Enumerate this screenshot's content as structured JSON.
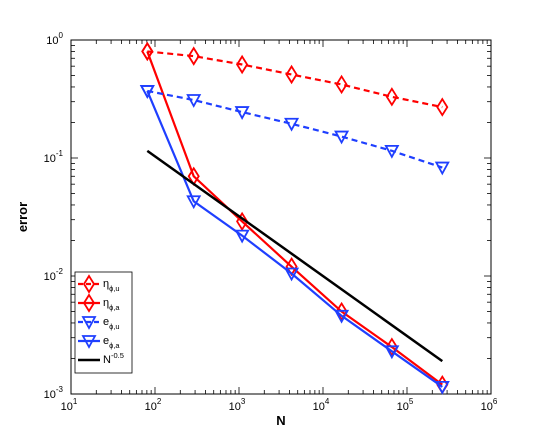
{
  "chart_data": {
    "type": "line",
    "xscale": "log",
    "yscale": "log",
    "xlim": [
      10,
      1000000
    ],
    "ylim": [
      0.001,
      1
    ],
    "xlabel": "N",
    "ylabel": "error",
    "grid": false,
    "legend_placement": "bottom-left",
    "x_ticks": [
      {
        "value": 10,
        "base": "10",
        "exp": "1"
      },
      {
        "value": 100,
        "base": "10",
        "exp": "2"
      },
      {
        "value": 1000,
        "base": "10",
        "exp": "3"
      },
      {
        "value": 10000,
        "base": "10",
        "exp": "4"
      },
      {
        "value": 100000,
        "base": "10",
        "exp": "5"
      },
      {
        "value": 1000000,
        "base": "10",
        "exp": "6"
      }
    ],
    "y_ticks": [
      {
        "value": 0.001,
        "base": "10",
        "exp": "-3"
      },
      {
        "value": 0.01,
        "base": "10",
        "exp": "-2"
      },
      {
        "value": 0.1,
        "base": "10",
        "exp": "-1"
      },
      {
        "value": 1,
        "base": "10",
        "exp": "0"
      }
    ],
    "series": [
      {
        "name": "η",
        "subscript": "ϕ,u",
        "color": "#ff0000",
        "dash": "dashed",
        "marker": "diamond",
        "x": [
          81,
          289,
          1089,
          4225,
          16641,
          66049,
          263169
        ],
        "y": [
          0.8,
          0.73,
          0.62,
          0.51,
          0.42,
          0.33,
          0.27
        ]
      },
      {
        "name": "η",
        "subscript": "ϕ,a",
        "color": "#ff0000",
        "dash": "solid",
        "marker": "diamond",
        "x": [
          81,
          289,
          1089,
          4225,
          16641,
          66049,
          263169
        ],
        "y": [
          0.8,
          0.07,
          0.029,
          0.012,
          0.005,
          0.0025,
          0.0012
        ]
      },
      {
        "name": "e",
        "subscript": "ϕ,u",
        "color": "#1f3fff",
        "dash": "dashed",
        "marker": "triangle-down",
        "x": [
          81,
          289,
          1089,
          4225,
          16641,
          66049,
          263169
        ],
        "y": [
          0.37,
          0.31,
          0.245,
          0.195,
          0.152,
          0.115,
          0.083
        ]
      },
      {
        "name": "e",
        "subscript": "ϕ,a",
        "color": "#1f3fff",
        "dash": "solid",
        "marker": "triangle-down",
        "x": [
          81,
          289,
          1089,
          4225,
          16641,
          66049,
          263169
        ],
        "y": [
          0.37,
          0.043,
          0.022,
          0.0105,
          0.0046,
          0.0023,
          0.00115
        ]
      },
      {
        "name": "N",
        "superscript": "-0.5",
        "color": "#000000",
        "dash": "solid",
        "marker": "none",
        "x": [
          81,
          263169
        ],
        "y": [
          0.115,
          0.0019
        ]
      }
    ]
  }
}
